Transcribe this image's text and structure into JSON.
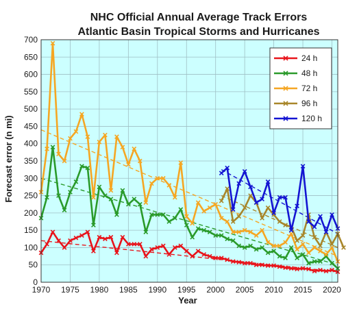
{
  "chart_data": {
    "type": "line",
    "title": "NHC Official Annual Average Track Errors",
    "subtitle": "Atlantic Basin Tropical Storms and Hurricanes",
    "xlabel": "Year",
    "ylabel": "Forecast error (n mi)",
    "xlim": [
      1970,
      2021
    ],
    "ylim": [
      0,
      700
    ],
    "xticks": [
      1970,
      1975,
      1980,
      1985,
      1990,
      1995,
      2000,
      2005,
      2010,
      2015,
      2020
    ],
    "yticks": [
      0,
      50,
      100,
      150,
      200,
      250,
      300,
      350,
      400,
      450,
      500,
      550,
      600,
      650,
      700
    ],
    "grid": true,
    "legend_position": "top-right",
    "background_color": "#ccffff",
    "series": [
      {
        "name": "24 h",
        "color": "#e8141b",
        "x_start": 1970,
        "values": [
          85,
          110,
          145,
          120,
          100,
          120,
          128,
          135,
          145,
          90,
          130,
          125,
          130,
          85,
          130,
          110,
          110,
          110,
          75,
          95,
          100,
          105,
          80,
          100,
          105,
          90,
          75,
          90,
          80,
          75,
          70,
          70,
          65,
          60,
          58,
          55,
          55,
          50,
          50,
          48,
          48,
          45,
          42,
          40,
          38,
          40,
          38,
          32,
          35,
          32,
          35,
          30
        ],
        "trend": [
          [
            1970,
            120
          ],
          [
            2021,
            30
          ]
        ]
      },
      {
        "name": "48 h",
        "color": "#2a9a2a",
        "x_start": 1970,
        "values": [
          185,
          245,
          390,
          250,
          208,
          260,
          290,
          335,
          330,
          165,
          275,
          250,
          240,
          195,
          265,
          225,
          240,
          225,
          145,
          195,
          195,
          195,
          175,
          185,
          210,
          165,
          130,
          155,
          150,
          145,
          135,
          135,
          125,
          120,
          105,
          100,
          105,
          95,
          100,
          85,
          90,
          75,
          70,
          100,
          70,
          80,
          55,
          60,
          60,
          75,
          55,
          40
        ],
        "trend": [
          [
            1970,
            300
          ],
          [
            2021,
            50
          ]
        ]
      },
      {
        "name": "72 h",
        "color": "#f5a623",
        "x_start": 1970,
        "values": [
          260,
          385,
          690,
          370,
          350,
          415,
          435,
          485,
          420,
          245,
          405,
          425,
          265,
          420,
          390,
          340,
          385,
          350,
          230,
          285,
          300,
          300,
          280,
          245,
          345,
          190,
          170,
          230,
          205,
          215,
          225,
          185,
          175,
          145,
          145,
          150,
          145,
          135,
          150,
          115,
          105,
          105,
          115,
          140,
          95,
          110,
          85,
          100,
          90,
          80,
          100,
          60
        ],
        "trend": [
          [
            1970,
            440
          ],
          [
            2021,
            75
          ]
        ]
      },
      {
        "name": "96 h",
        "color": "#a8862a",
        "x_start": 2001,
        "values": [
          235,
          270,
          175,
          190,
          215,
          250,
          230,
          185,
          215,
          195,
          175,
          165,
          160,
          120,
          135,
          195,
          130,
          105,
          145,
          110,
          140,
          100
        ],
        "trend": [
          [
            2001,
            250
          ],
          [
            2021,
            100
          ]
        ]
      },
      {
        "name": "120 h",
        "color": "#1414d2",
        "x_start": 2001,
        "values": [
          315,
          330,
          210,
          285,
          320,
          275,
          230,
          240,
          290,
          200,
          245,
          245,
          150,
          220,
          335,
          175,
          160,
          190,
          145,
          195,
          155
        ],
        "trend": [
          [
            2001,
            325
          ],
          [
            2021,
            140
          ]
        ]
      }
    ]
  }
}
